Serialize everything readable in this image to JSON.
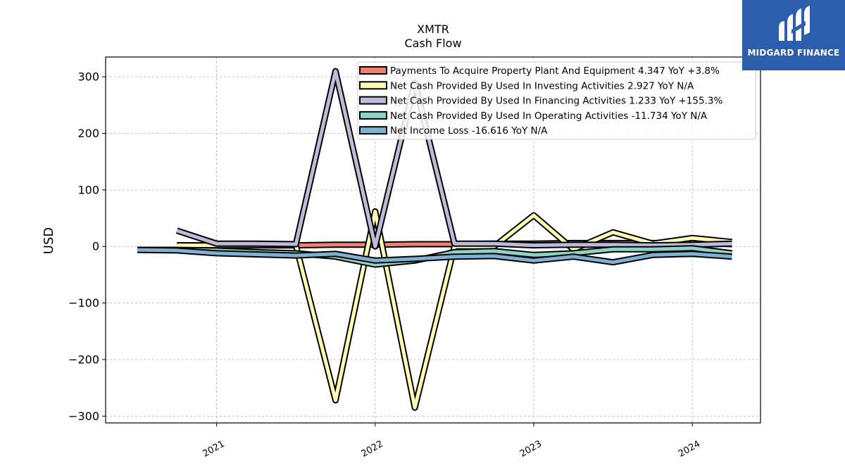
{
  "brand": {
    "name": "MIDGARD FINANCE",
    "bg_color": "#2d5ead",
    "text_color": "#ffffff"
  },
  "chart_data": {
    "type": "line",
    "title": "XMTR",
    "subtitle": "Cash Flow",
    "xlabel": "",
    "ylabel": "USD",
    "ylim": [
      -312,
      335
    ],
    "xlim": [
      2020.3,
      2024.43
    ],
    "x_ticks": [
      2021,
      2022,
      2023,
      2024
    ],
    "x_tick_labels": [
      "2021",
      "2022",
      "2023",
      "2024"
    ],
    "y_ticks": [
      -300,
      -200,
      -100,
      0,
      100,
      200,
      300
    ],
    "y_tick_labels": [
      "−300",
      "−200",
      "−100",
      "0",
      "100",
      "200",
      "300"
    ],
    "grid": true,
    "legend_position": "top-right",
    "series": [
      {
        "name": "Payments To Acquire Property Plant And Equipment",
        "legend": "Payments To Acquire Property Plant And Equipment  4.347 YoY +3.8%",
        "color": "#f28072",
        "x": [
          2020.75,
          2021.0,
          2021.25,
          2021.5,
          2021.75,
          2022.0,
          2022.25,
          2022.5,
          2022.75,
          2023.0,
          2023.25,
          2023.5,
          2023.75,
          2024.0,
          2024.25
        ],
        "values": [
          2,
          2,
          2,
          2,
          3,
          3,
          4,
          4,
          5,
          5,
          6,
          6,
          6,
          7,
          4
        ]
      },
      {
        "name": "Net Cash Provided By Used In Investing Activities",
        "legend": "Net Cash Provided By Used In Investing Activities  2.927 YoY N/A",
        "color": "#ffffb3",
        "x": [
          2020.75,
          2021.0,
          2021.25,
          2021.5,
          2021.75,
          2022.0,
          2022.25,
          2022.5,
          2022.75,
          2023.0,
          2023.25,
          2023.5,
          2023.75,
          2024.0,
          2024.25
        ],
        "values": [
          2,
          2,
          2,
          2,
          -272,
          62,
          -285,
          0,
          0,
          55,
          -5,
          25,
          5,
          15,
          8
        ]
      },
      {
        "name": "Net Cash Provided By Used In Financing Activities",
        "legend": "Net Cash Provided By Used In Financing Activities  1.233 YoY +155.3%",
        "color": "#bebada",
        "x": [
          2020.75,
          2021.0,
          2021.25,
          2021.5,
          2021.75,
          2022.0,
          2022.25,
          2022.5,
          2022.75,
          2023.0,
          2023.25,
          2023.5,
          2023.75,
          2024.0,
          2024.25
        ],
        "values": [
          28,
          5,
          5,
          4,
          310,
          0,
          290,
          5,
          5,
          2,
          3,
          3,
          2,
          3,
          5
        ]
      },
      {
        "name": "Net Cash Provided By Used In Operating Activities",
        "legend": "Net Cash Provided By Used In Operating Activities  -11.734 YoY N/A",
        "color": "#8dd3c7",
        "x": [
          2020.5,
          2020.75,
          2021.0,
          2021.25,
          2021.5,
          2021.75,
          2022.0,
          2022.25,
          2022.5,
          2022.75,
          2023.0,
          2023.25,
          2023.5,
          2023.75,
          2024.0,
          2024.25
        ],
        "values": [
          -6,
          -6,
          -7,
          -10,
          -12,
          -18,
          -32,
          -25,
          -10,
          -8,
          -15,
          -12,
          -5,
          -5,
          -3,
          -12
        ]
      },
      {
        "name": "Net Income Loss",
        "legend": "Net Income Loss  -16.616 YoY N/A",
        "color": "#80b1d3",
        "x": [
          2020.5,
          2020.75,
          2021.0,
          2021.25,
          2021.5,
          2021.75,
          2022.0,
          2022.25,
          2022.5,
          2022.75,
          2023.0,
          2023.25,
          2023.5,
          2023.75,
          2024.0,
          2024.25
        ],
        "values": [
          -6,
          -7,
          -12,
          -14,
          -16,
          -13,
          -25,
          -22,
          -18,
          -17,
          -25,
          -18,
          -28,
          -15,
          -13,
          -18
        ]
      }
    ]
  }
}
